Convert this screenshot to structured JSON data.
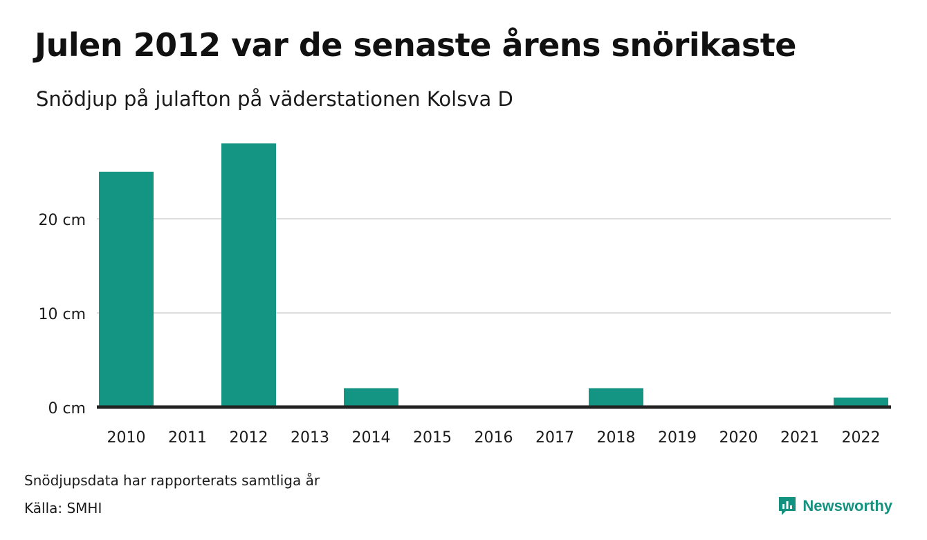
{
  "title": "Julen 2012 var de senaste årens snörikaste",
  "subtitle": "Snödjup på julafton på väderstationen Kolsva D",
  "footnote": "Snödjupsdata har rapporterats samtliga år",
  "source": "Källa: SMHI",
  "brand": {
    "name": "Newsworthy",
    "icon": "newsworthy-logo-icon"
  },
  "colors": {
    "bar": "#149584",
    "grid": "#dddddd",
    "axis": "#222222",
    "brand": "#13937f"
  },
  "chart_data": {
    "type": "bar",
    "categories": [
      "2010",
      "2011",
      "2012",
      "2013",
      "2014",
      "2015",
      "2016",
      "2017",
      "2018",
      "2019",
      "2020",
      "2021",
      "2022"
    ],
    "values": [
      25,
      0,
      28,
      0,
      2,
      0,
      0,
      0,
      2,
      0,
      0,
      0,
      1
    ],
    "ylim": [
      0,
      30
    ],
    "yticks": [
      0,
      10,
      20
    ],
    "ytick_labels": [
      "0 cm",
      "10 cm",
      "20 cm"
    ],
    "grid": true,
    "xlabel": "",
    "ylabel": ""
  }
}
